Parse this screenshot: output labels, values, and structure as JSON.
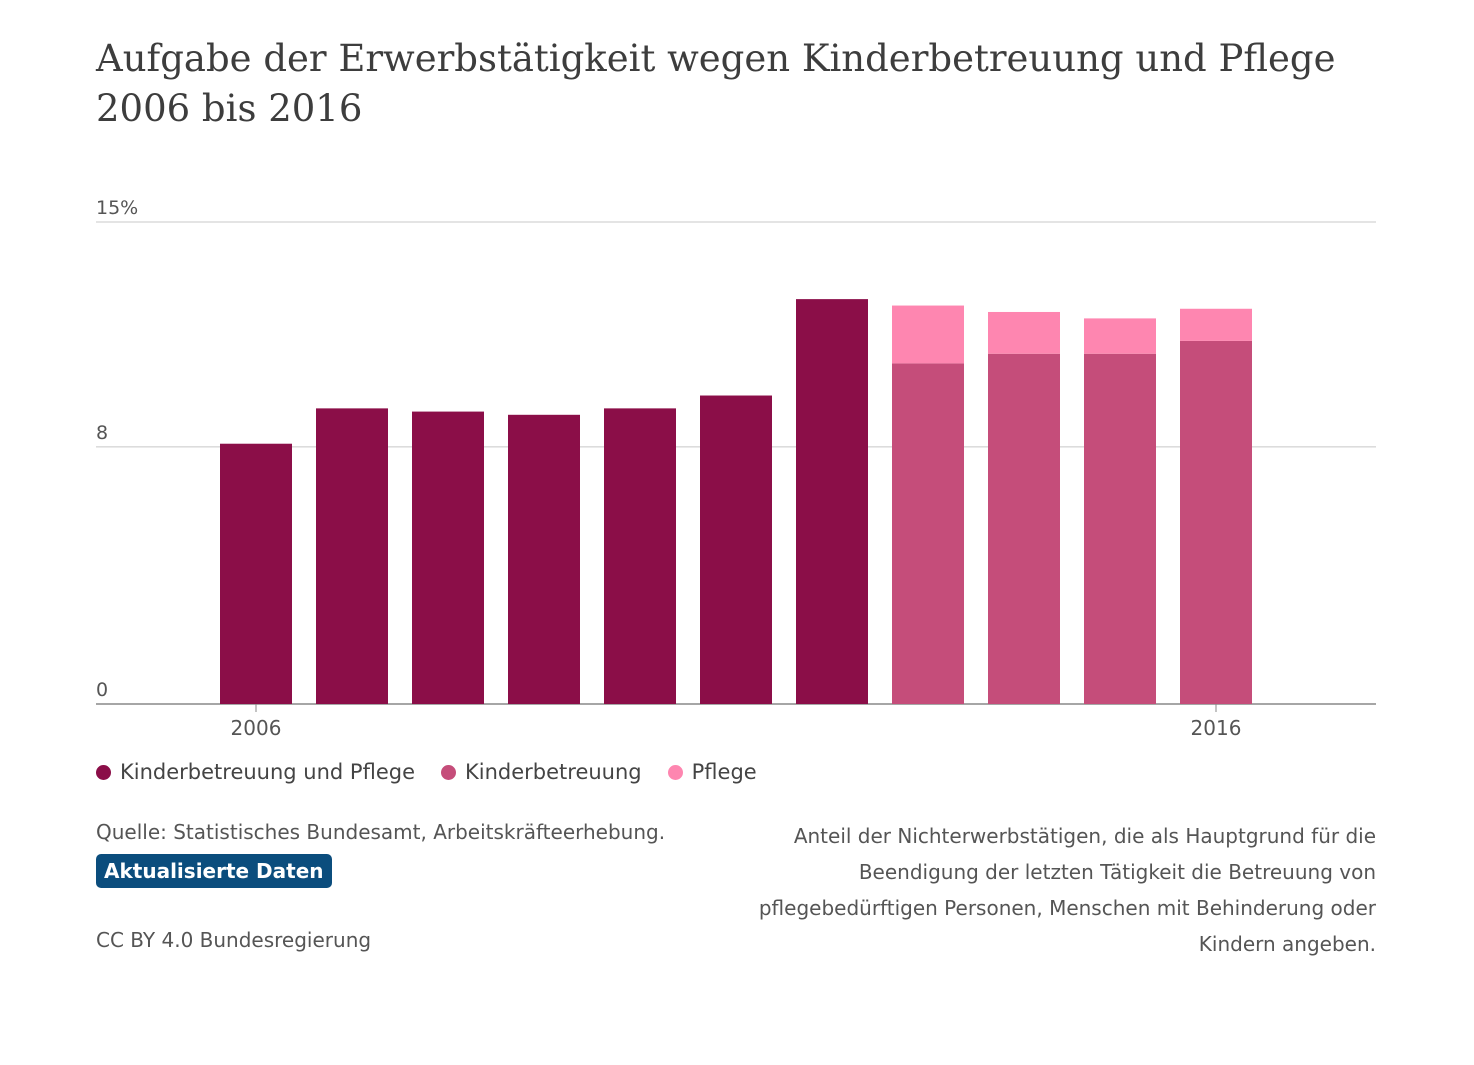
{
  "title": "Aufgabe der Erwerbstätigkeit wegen Kinderbetreuung und Pflege 2006 bis 2016",
  "chart_data": {
    "type": "bar",
    "stacked": true,
    "categories": [
      "2006",
      "2007",
      "2008",
      "2009",
      "2010",
      "2011",
      "2012",
      "2013",
      "2014",
      "2015",
      "2016"
    ],
    "x_tick_labels": [
      "2006",
      "2016"
    ],
    "y_tick_labels": [
      "0",
      "8",
      "15%"
    ],
    "y_ticks": [
      0,
      8,
      15
    ],
    "ylim": [
      0,
      15
    ],
    "grid": true,
    "legend_position": "bottom-left",
    "series": [
      {
        "name": "Kinderbetreuung und Pflege",
        "color": "#8b0e48",
        "values": [
          8.1,
          9.2,
          9.1,
          9.0,
          9.2,
          9.6,
          12.6,
          null,
          null,
          null,
          null
        ]
      },
      {
        "name": "Kinderbetreuung",
        "color": "#c54d7a",
        "values": [
          null,
          null,
          null,
          null,
          null,
          null,
          null,
          10.6,
          10.9,
          10.9,
          11.3
        ]
      },
      {
        "name": "Pflege",
        "color": "#fe86b0",
        "values": [
          null,
          null,
          null,
          null,
          null,
          null,
          null,
          1.8,
          1.3,
          1.1,
          1.0
        ]
      }
    ]
  },
  "footer": {
    "source": "Quelle: Statistisches Bundesamt, Arbeitskräfteerhebung.",
    "badge": "Aktualisierte Daten",
    "license": "CC BY 4.0 Bundesregierung",
    "note": "Anteil der Nichterwerbstätigen, die als Hauptgrund für die Beendigung der letzten Tätigkeit die Betreuung von pflegebedürftigen Personen, Menschen mit Behinderung oder Kindern angeben."
  }
}
